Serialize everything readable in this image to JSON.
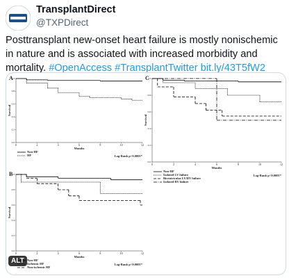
{
  "tweet": {
    "author": "TransplantDirect",
    "handle": "@TXPDirect",
    "text": "Posttransplant new-onset heart failure is mostly nonischemic in nature and is associated with increased morbidity and mortality.",
    "hashtags": [
      "#OpenAccess",
      "#TransplantTwitter"
    ],
    "link": "bit.ly/43T5fW2"
  },
  "image": {
    "alt_badge": "ALT"
  },
  "chart_data": [
    {
      "type": "step",
      "panel": "A",
      "ylabel": "Survival",
      "xlabel": "Months",
      "annotation": "Log-Rank p<0.0001*",
      "xlim": [
        0,
        12
      ],
      "ylim": [
        0,
        1
      ],
      "xticks": [
        0,
        2,
        4,
        6,
        8,
        10,
        12
      ],
      "yticks": [
        {
          "value": 0,
          "label": "0.0"
        },
        {
          "value": 0.2,
          "label": "0.2"
        },
        {
          "value": 0.4,
          "label": "0.4"
        },
        {
          "value": 0.6,
          "label": "0.6"
        },
        {
          "value": 0.8,
          "label": "0.8"
        },
        {
          "value": 1,
          "label": "1.0"
        }
      ],
      "legend": "lower left",
      "series": [
        {
          "name": "Non-HF",
          "color": "#000000",
          "dash": "solid",
          "x": [
            0,
            1,
            3,
            8
          ],
          "values": [
            1.0,
            0.98,
            0.97,
            0.96
          ]
        },
        {
          "name": "HF",
          "color": "#000000",
          "dash": "dotted",
          "x": [
            0,
            1,
            3,
            4,
            6,
            7,
            10,
            11
          ],
          "values": [
            1.0,
            0.93,
            0.85,
            0.78,
            0.72,
            0.7,
            0.68,
            0.66
          ]
        }
      ]
    },
    {
      "type": "step",
      "panel": "B",
      "ylabel": "Survival",
      "xlabel": "Months",
      "annotation": "Log-Rank p<0.0001*",
      "xlim": [
        0,
        12
      ],
      "ylim": [
        0,
        1
      ],
      "xticks": [
        0,
        2,
        4,
        6,
        8,
        10,
        12
      ],
      "yticks": [
        {
          "value": 0,
          "label": "0.0"
        },
        {
          "value": 0.2,
          "label": "0.2"
        },
        {
          "value": 0.4,
          "label": "0.4"
        },
        {
          "value": 0.6,
          "label": "0.6"
        },
        {
          "value": 0.8,
          "label": "0.8"
        },
        {
          "value": 1,
          "label": "1.0"
        }
      ],
      "legend": "lower left",
      "series": [
        {
          "name": "Non-HF",
          "color": "#000000",
          "dash": "solid",
          "x": [
            0,
            1,
            4,
            9
          ],
          "values": [
            1.0,
            0.97,
            0.95,
            0.93
          ]
        },
        {
          "name": "Ischemic HF",
          "color": "#000000",
          "dash": "dotted",
          "x": [
            0,
            0.5,
            8
          ],
          "values": [
            1.0,
            0.9,
            0.75
          ]
        },
        {
          "name": "Non-ischemic HF",
          "color": "#000000",
          "dash": "dashed",
          "x": [
            0,
            1,
            2,
            4,
            5,
            6,
            11.8
          ],
          "values": [
            1.0,
            0.95,
            0.88,
            0.8,
            0.72,
            0.66,
            0.6
          ]
        }
      ]
    },
    {
      "type": "step",
      "panel": "C",
      "ylabel": "Survival",
      "xlabel": "Months",
      "annotation": "Log-Rank p<0.0001*",
      "xlim": [
        0,
        12
      ],
      "ylim": [
        0,
        1
      ],
      "xticks": [
        0,
        2,
        4,
        6,
        8,
        10,
        12
      ],
      "yticks": [
        {
          "value": 0,
          "label": "0.0"
        },
        {
          "value": 0.2,
          "label": "0.2"
        },
        {
          "value": 0.4,
          "label": "0.4"
        },
        {
          "value": 0.6,
          "label": "0.6"
        },
        {
          "value": 0.8,
          "label": "0.8"
        },
        {
          "value": 1,
          "label": "1.0"
        }
      ],
      "legend": "lower left",
      "series": [
        {
          "name": "Non-HF",
          "color": "#000000",
          "dash": "solid",
          "x": [
            0,
            1,
            3,
            8
          ],
          "values": [
            1.0,
            0.98,
            0.97,
            0.96
          ]
        },
        {
          "name": "Isolated LV failure",
          "color": "#000000",
          "dash": "dotted",
          "x": [
            0,
            1,
            4,
            7,
            10
          ],
          "values": [
            1.0,
            0.95,
            0.88,
            0.8,
            0.72
          ]
        },
        {
          "name": "Biventricular LV/RV failure",
          "color": "#000000",
          "dash": "dashed",
          "x": [
            0,
            0.5,
            2,
            4,
            5,
            6.5
          ],
          "values": [
            1.0,
            0.9,
            0.78,
            0.7,
            0.62,
            0.55
          ]
        },
        {
          "name": "Isolated RV failure",
          "color": "#000000",
          "dash": "dashdot",
          "x": [
            0,
            6
          ],
          "values": [
            1.0,
            0.5
          ]
        }
      ]
    }
  ]
}
